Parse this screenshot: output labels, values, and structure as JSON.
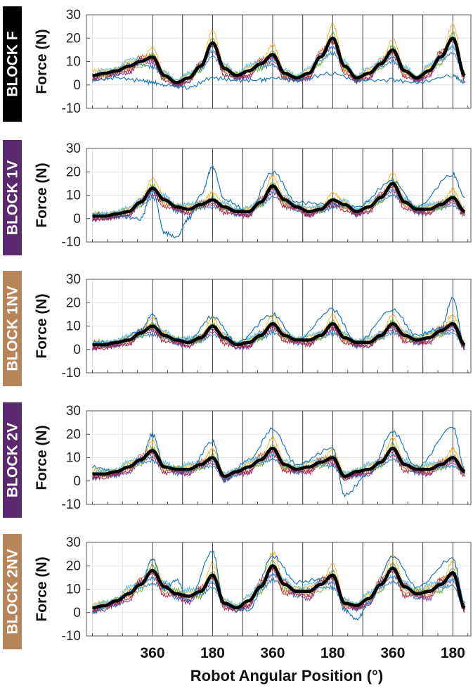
{
  "figure": {
    "xlabel": "Robot Angular Position (°)",
    "xtick_labels": [
      "360",
      "180",
      "360",
      "180",
      "360",
      "180"
    ],
    "cycle_tick_labels": [
      "360",
      "180"
    ]
  },
  "colors": {
    "mean_line": "#000000",
    "grid": "#e4e4e4",
    "axis": "#555555",
    "trial_palette": [
      "#1f77b4",
      "#d95319",
      "#edb120",
      "#7e2f8e",
      "#77ac30",
      "#4dbeee",
      "#a2142f"
    ]
  },
  "chart_data": [
    {
      "type": "line",
      "block_label": "BLOCK F",
      "block_color": "#000000",
      "ylabel": "Force (N)",
      "ylim": [
        -10,
        30
      ],
      "yticks": [
        -10,
        0,
        10,
        20,
        30
      ],
      "x_unit": "cycle index (angular position: 360 at cycle start, 180 at half-cycle)",
      "xlim": [
        -1.1,
        5.3
      ],
      "grid": true,
      "series": [
        {
          "role": "mean",
          "x": [
            -1.0,
            -0.8,
            -0.6,
            -0.4,
            -0.2,
            0.0,
            0.2,
            0.4,
            0.6,
            0.8,
            1.0,
            1.2,
            1.4,
            1.6,
            1.8,
            2.0,
            2.2,
            2.4,
            2.6,
            2.8,
            3.0,
            3.2,
            3.4,
            3.6,
            3.8,
            4.0,
            4.2,
            4.4,
            4.6,
            4.8,
            5.0,
            5.2
          ],
          "y": [
            4,
            5,
            6,
            8,
            10,
            12,
            4,
            1,
            3,
            8,
            18,
            7,
            4,
            6,
            9,
            13,
            5,
            3,
            5,
            12,
            20,
            8,
            3,
            5,
            9,
            15,
            6,
            3,
            6,
            12,
            20,
            4
          ]
        },
        {
          "role": "trial",
          "x": [
            -1.0,
            -0.6,
            -0.2,
            0.0,
            0.2,
            0.6,
            1.0,
            1.4,
            1.8,
            2.0,
            2.4,
            3.0,
            3.4,
            4.0,
            4.4,
            5.0,
            5.2
          ],
          "y": [
            2,
            3,
            2,
            1,
            0,
            -1,
            3,
            2,
            2,
            3,
            2,
            5,
            2,
            2,
            1,
            4,
            1
          ]
        }
      ]
    },
    {
      "type": "line",
      "block_label": "BLOCK 1V",
      "block_color": "#5b2a6e",
      "ylabel": "Force (N)",
      "ylim": [
        -10,
        30
      ],
      "yticks": [
        -10,
        0,
        10,
        20,
        30
      ],
      "x_unit": "cycle index (angular position: 360 at cycle start, 180 at half-cycle)",
      "xlim": [
        -1.1,
        5.3
      ],
      "grid": true,
      "series": [
        {
          "role": "mean",
          "x": [
            -1.0,
            -0.8,
            -0.6,
            -0.4,
            -0.2,
            0.0,
            0.2,
            0.4,
            0.6,
            0.8,
            1.0,
            1.2,
            1.4,
            1.6,
            1.8,
            2.0,
            2.2,
            2.4,
            2.6,
            2.8,
            3.0,
            3.2,
            3.4,
            3.6,
            3.8,
            4.0,
            4.2,
            4.4,
            4.6,
            4.8,
            5.0,
            5.2
          ],
          "y": [
            1,
            1,
            2,
            3,
            7,
            13,
            8,
            5,
            4,
            6,
            8,
            5,
            3,
            3,
            7,
            14,
            8,
            5,
            3,
            4,
            8,
            6,
            3,
            5,
            9,
            15,
            7,
            4,
            4,
            6,
            9,
            3
          ]
        },
        {
          "role": "trial",
          "x": [
            -1.0,
            -0.6,
            -0.2,
            0.0,
            0.2,
            0.4,
            0.6,
            0.8,
            1.0,
            1.2,
            1.6,
            2.0,
            2.4,
            3.0,
            3.4,
            4.0,
            4.4,
            5.0,
            5.2
          ],
          "y": [
            2,
            1,
            0,
            12,
            -6,
            -8,
            0,
            10,
            22,
            8,
            3,
            20,
            7,
            6,
            5,
            16,
            5,
            19,
            9
          ]
        }
      ]
    },
    {
      "type": "line",
      "block_label": "BLOCK 1NV",
      "block_color": "#b8855a",
      "ylabel": "Force (N)",
      "ylim": [
        -10,
        30
      ],
      "yticks": [
        -10,
        0,
        10,
        20,
        30
      ],
      "x_unit": "cycle index (angular position: 360 at cycle start, 180 at half-cycle)",
      "xlim": [
        -1.1,
        5.3
      ],
      "grid": true,
      "series": [
        {
          "role": "mean",
          "x": [
            -1.0,
            -0.8,
            -0.6,
            -0.4,
            -0.2,
            0.0,
            0.2,
            0.4,
            0.6,
            0.8,
            1.0,
            1.2,
            1.4,
            1.6,
            1.8,
            2.0,
            2.2,
            2.4,
            2.6,
            2.8,
            3.0,
            3.2,
            3.4,
            3.6,
            3.8,
            4.0,
            4.2,
            4.4,
            4.6,
            4.8,
            5.0,
            5.2
          ],
          "y": [
            2,
            2,
            3,
            4,
            7,
            10,
            6,
            4,
            3,
            5,
            10,
            5,
            2,
            3,
            6,
            11,
            6,
            4,
            4,
            6,
            11,
            5,
            3,
            3,
            6,
            11,
            6,
            4,
            5,
            8,
            11,
            2
          ]
        },
        {
          "role": "trial",
          "x": [
            -1.0,
            -0.6,
            -0.2,
            0.0,
            0.2,
            0.6,
            1.0,
            1.4,
            2.0,
            2.4,
            3.0,
            3.4,
            4.0,
            4.4,
            4.8,
            5.0,
            5.2
          ],
          "y": [
            3,
            3,
            8,
            15,
            5,
            4,
            14,
            3,
            15,
            4,
            17,
            3,
            17,
            6,
            9,
            22,
            1
          ]
        }
      ]
    },
    {
      "type": "line",
      "block_label": "BLOCK 2V",
      "block_color": "#5b2a6e",
      "ylabel": "Force (N)",
      "ylim": [
        -10,
        30
      ],
      "yticks": [
        -10,
        0,
        10,
        20,
        30
      ],
      "x_unit": "cycle index (angular position: 360 at cycle start, 180 at half-cycle)",
      "xlim": [
        -1.1,
        5.3
      ],
      "grid": true,
      "series": [
        {
          "role": "mean",
          "x": [
            -1.0,
            -0.8,
            -0.6,
            -0.4,
            -0.2,
            0.0,
            0.2,
            0.4,
            0.6,
            0.8,
            1.0,
            1.2,
            1.4,
            1.6,
            1.8,
            2.0,
            2.2,
            2.4,
            2.6,
            2.8,
            3.0,
            3.2,
            3.4,
            3.6,
            3.8,
            4.0,
            4.2,
            4.4,
            4.6,
            4.8,
            5.0,
            5.2
          ],
          "y": [
            3,
            3,
            4,
            6,
            9,
            13,
            6,
            5,
            5,
            7,
            10,
            2,
            4,
            6,
            9,
            14,
            7,
            5,
            6,
            8,
            10,
            2,
            4,
            5,
            8,
            14,
            7,
            5,
            5,
            7,
            10,
            4
          ]
        },
        {
          "role": "trial",
          "x": [
            -1.0,
            -0.6,
            -0.2,
            0.0,
            0.2,
            0.6,
            1.0,
            1.2,
            1.6,
            2.0,
            2.4,
            3.0,
            3.2,
            3.6,
            4.0,
            4.4,
            5.0,
            5.2
          ],
          "y": [
            6,
            4,
            8,
            20,
            6,
            4,
            17,
            0,
            9,
            22,
            7,
            14,
            -6,
            3,
            21,
            6,
            23,
            5
          ]
        }
      ]
    },
    {
      "type": "line",
      "block_label": "BLOCK 2NV",
      "block_color": "#b8855a",
      "ylabel": "Force (N)",
      "ylim": [
        -10,
        30
      ],
      "yticks": [
        -10,
        0,
        10,
        20,
        30
      ],
      "x_unit": "cycle index (angular position: 360 at cycle start, 180 at half-cycle)",
      "xlim": [
        -1.1,
        5.3
      ],
      "grid": true,
      "series": [
        {
          "role": "mean",
          "x": [
            -1.0,
            -0.8,
            -0.6,
            -0.4,
            -0.2,
            0.0,
            0.2,
            0.4,
            0.6,
            0.8,
            1.0,
            1.2,
            1.4,
            1.6,
            1.8,
            2.0,
            2.2,
            2.4,
            2.6,
            2.8,
            3.0,
            3.2,
            3.4,
            3.6,
            3.8,
            4.0,
            4.2,
            4.4,
            4.6,
            4.8,
            5.0,
            5.2
          ],
          "y": [
            2,
            3,
            5,
            8,
            12,
            18,
            11,
            8,
            7,
            9,
            16,
            4,
            2,
            5,
            11,
            20,
            12,
            9,
            9,
            12,
            16,
            4,
            3,
            6,
            12,
            19,
            11,
            8,
            9,
            12,
            17,
            2
          ]
        },
        {
          "role": "trial",
          "x": [
            -1.0,
            -0.6,
            -0.2,
            0.0,
            0.2,
            0.4,
            0.6,
            1.0,
            1.2,
            1.6,
            2.0,
            2.4,
            3.0,
            3.2,
            3.4,
            3.6,
            4.0,
            4.4,
            5.0,
            5.2
          ],
          "y": [
            0,
            5,
            12,
            23,
            10,
            14,
            5,
            26,
            3,
            1,
            24,
            13,
            15,
            1,
            -3,
            4,
            24,
            11,
            23,
            4
          ]
        }
      ]
    }
  ]
}
